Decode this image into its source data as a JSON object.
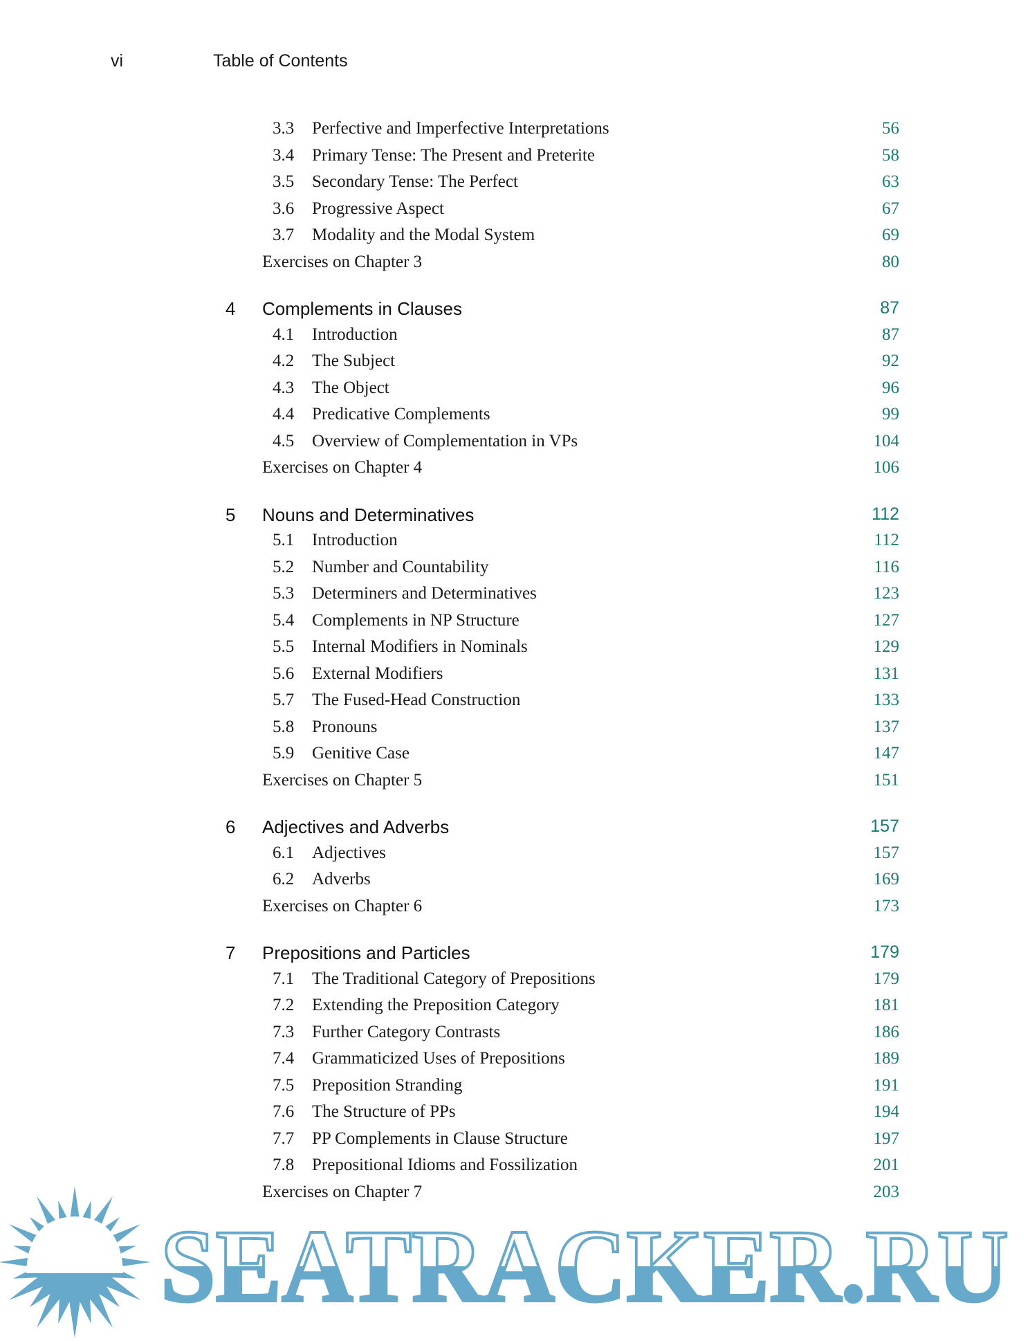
{
  "header": {
    "page_number": "vi",
    "running_title": "Table of Contents"
  },
  "colors": {
    "page_number": "#1b7a72",
    "watermark": "#67a9cb"
  },
  "watermark": {
    "text": "SEATRACKER.RU",
    "icon": "sun-icon"
  },
  "groups": [
    {
      "chapter": null,
      "sections": [
        {
          "num": "3.3",
          "title": "Perfective and Imperfective Interpretations",
          "page": "56"
        },
        {
          "num": "3.4",
          "title": "Primary Tense: The Present and Preterite",
          "page": "58"
        },
        {
          "num": "3.5",
          "title": "Secondary Tense: The Perfect",
          "page": "63"
        },
        {
          "num": "3.6",
          "title": "Progressive Aspect",
          "page": "67"
        },
        {
          "num": "3.7",
          "title": "Modality and the Modal System",
          "page": "69"
        }
      ],
      "exercises": {
        "title": "Exercises on Chapter 3",
        "page": "80"
      }
    },
    {
      "chapter": {
        "num": "4",
        "title": "Complements in Clauses",
        "page": "87"
      },
      "sections": [
        {
          "num": "4.1",
          "title": "Introduction",
          "page": "87"
        },
        {
          "num": "4.2",
          "title": "The Subject",
          "page": "92"
        },
        {
          "num": "4.3",
          "title": "The Object",
          "page": "96"
        },
        {
          "num": "4.4",
          "title": "Predicative Complements",
          "page": "99"
        },
        {
          "num": "4.5",
          "title": "Overview of Complementation in VPs",
          "page": "104"
        }
      ],
      "exercises": {
        "title": "Exercises on Chapter 4",
        "page": "106"
      }
    },
    {
      "chapter": {
        "num": "5",
        "title": "Nouns and Determinatives",
        "page": "112"
      },
      "sections": [
        {
          "num": "5.1",
          "title": "Introduction",
          "page": "112"
        },
        {
          "num": "5.2",
          "title": "Number and Countability",
          "page": "116"
        },
        {
          "num": "5.3",
          "title": "Determiners and Determinatives",
          "page": "123"
        },
        {
          "num": "5.4",
          "title": "Complements in NP Structure",
          "page": "127"
        },
        {
          "num": "5.5",
          "title": "Internal Modifiers in Nominals",
          "page": "129"
        },
        {
          "num": "5.6",
          "title": "External Modifiers",
          "page": "131"
        },
        {
          "num": "5.7",
          "title": "The Fused-Head Construction",
          "page": "133"
        },
        {
          "num": "5.8",
          "title": "Pronouns",
          "page": "137"
        },
        {
          "num": "5.9",
          "title": "Genitive Case",
          "page": "147"
        }
      ],
      "exercises": {
        "title": "Exercises on Chapter 5",
        "page": "151"
      }
    },
    {
      "chapter": {
        "num": "6",
        "title": "Adjectives and Adverbs",
        "page": "157"
      },
      "sections": [
        {
          "num": "6.1",
          "title": "Adjectives",
          "page": "157"
        },
        {
          "num": "6.2",
          "title": "Adverbs",
          "page": "169"
        }
      ],
      "exercises": {
        "title": "Exercises on Chapter 6",
        "page": "173"
      }
    },
    {
      "chapter": {
        "num": "7",
        "title": "Prepositions and Particles",
        "page": "179"
      },
      "sections": [
        {
          "num": "7.1",
          "title": "The Traditional Category of Prepositions",
          "page": "179"
        },
        {
          "num": "7.2",
          "title": "Extending the Preposition Category",
          "page": "181"
        },
        {
          "num": "7.3",
          "title": "Further Category Contrasts",
          "page": "186"
        },
        {
          "num": "7.4",
          "title": "Grammaticized Uses of Prepositions",
          "page": "189"
        },
        {
          "num": "7.5",
          "title": "Preposition Stranding",
          "page": "191"
        },
        {
          "num": "7.6",
          "title": "The Structure of PPs",
          "page": "194"
        },
        {
          "num": "7.7",
          "title": "PP Complements in Clause Structure",
          "page": "197"
        },
        {
          "num": "7.8",
          "title": "Prepositional Idioms and Fossilization",
          "page": "201"
        }
      ],
      "exercises": {
        "title": "Exercises on Chapter 7",
        "page": "203"
      }
    }
  ]
}
